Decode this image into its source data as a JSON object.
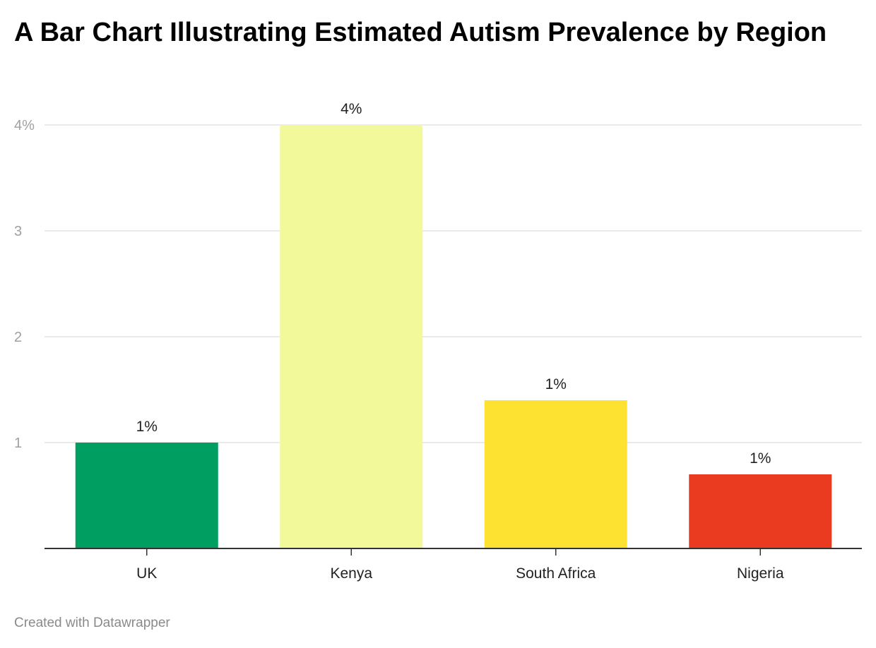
{
  "title": "A Bar Chart Illustrating Estimated Autism Prevalence by Region",
  "footer": "Created with Datawrapper",
  "chart_data": {
    "type": "bar",
    "title": "A Bar Chart Illustrating Estimated Autism Prevalence by Region",
    "xlabel": "",
    "ylabel": "",
    "categories": [
      "UK",
      "Kenya",
      "South Africa",
      "Nigeria"
    ],
    "values": [
      1.0,
      4.0,
      1.4,
      0.7
    ],
    "data_labels": [
      "1%",
      "4%",
      "1%",
      "1%"
    ],
    "colors": [
      "#009f61",
      "#f2f99a",
      "#fee231",
      "#ea3b20"
    ],
    "ylim": [
      0,
      4
    ],
    "yticks": [
      1,
      2,
      3,
      4
    ],
    "ytick_labels": [
      "1",
      "2",
      "3",
      "4%"
    ],
    "grid": true,
    "legend": "none"
  }
}
